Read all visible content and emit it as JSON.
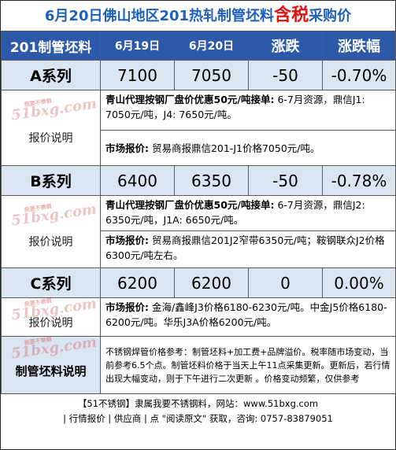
{
  "title": {
    "part1": "6月20日佛山地区201热轧制管坯料",
    "highlight": "含税",
    "part2": "采购价"
  },
  "header": {
    "col0": "201制管坯料",
    "col1": "6月19日",
    "col2": "6月20日",
    "col3": "涨跌",
    "col4": "涨跌幅"
  },
  "rows": [
    {
      "name": "A系列",
      "prev": "7100",
      "curr": "7050",
      "change": "-50",
      "pct": "-0.70%",
      "label": "报价说明",
      "note1_bold": "青山代理按钢厂盘价优惠50元/吨接单:",
      "note1_text": " 6-7月资源，鼎信J1: 7050元/吨，J4: 7650元/吨。",
      "note2_bold": "市场报价:",
      "note2_text": " 贸易商报鼎信201-J1价格7050元/吨。"
    },
    {
      "name": "B系列",
      "prev": "6400",
      "curr": "6350",
      "change": "-50",
      "pct": "-0.78%",
      "label": "报价说明",
      "note1_bold": "青山代理按钢厂盘价优惠50元/吨接单:",
      "note1_text": " 6-7月资源，鼎信J2: 6350元/吨，J1A: 6650元/吨。",
      "note2_bold": "市场报价:",
      "note2_text": " 贸易商报鼎信201J2窄带6350元/吨；鞍钢联众J2价格6300元/吨左右。"
    },
    {
      "name": "C系列",
      "prev": "6200",
      "curr": "6200",
      "change": "0",
      "pct": "0.00%",
      "label": "报价说明",
      "note1_bold": "市场报价:",
      "note1_text": " 金海/鑫峰J3价格6180-6230元/吨。中金J5价格6180-6200元/吨。华乐J3A价格6200元/吨。"
    }
  ],
  "watermark": {
    "main": "51bxg.com",
    "sub": "我要不锈钢"
  },
  "footer_label": "制管坯料说明",
  "footer_note": "不锈钢焊管价格参考：制管坯料+加工费+品牌溢价。税率随市场变动，当前参考6.5个点。制管坯料价格于当天上午11点采集更新。更新后，若行情出现大幅变动，则于下午进行二次更新 。价格变动频繁，仅供参考",
  "bottom": {
    "line1": "【51不锈钢】隶属我要不锈钢料，网站：www.51bxg.com",
    "line2": "| 行情报价 | 供应商 | 点 \"阅读原文\" 获取，咨询: 0757-83879051"
  }
}
